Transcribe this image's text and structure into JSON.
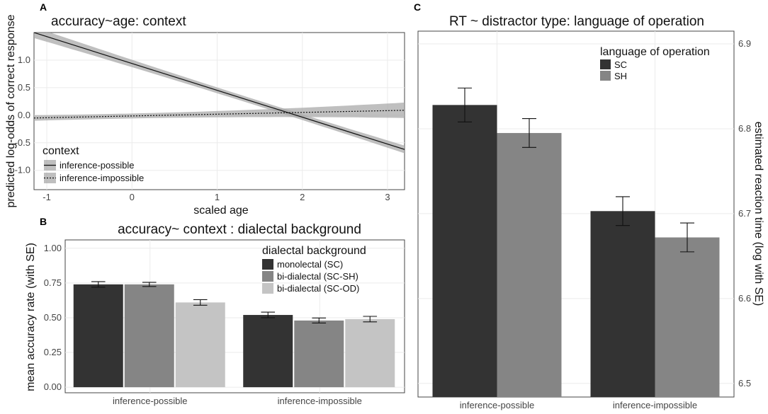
{
  "chart_data": [
    {
      "panel": "A",
      "type": "line",
      "title": "accuracy~age: context",
      "xlabel": "scaled age",
      "ylabel": "predicted log-odds of correct response",
      "xlim": [
        -1.15,
        3.2
      ],
      "ylim": [
        -1.35,
        1.5
      ],
      "xticks": [
        -1,
        0,
        1,
        2,
        3
      ],
      "yticks": [
        -1.0,
        -0.5,
        0.0,
        0.5,
        1.0
      ],
      "grid": true,
      "legend": {
        "title": "context",
        "position": "bottom-left"
      },
      "series": [
        {
          "name": "inference-possible",
          "line": "solid",
          "x": [
            -1.15,
            3.2
          ],
          "y": [
            1.5,
            -0.62
          ],
          "ci_halfwidth_ends": [
            0.1,
            0.07
          ],
          "ci_halfwidth_mid": 0.02
        },
        {
          "name": "inference-impossible",
          "line": "dotted",
          "x": [
            -1.15,
            3.2
          ],
          "y": [
            -0.05,
            0.09
          ],
          "ci_halfwidth_ends": [
            0.05,
            0.14
          ],
          "ci_halfwidth_mid": 0.02
        }
      ]
    },
    {
      "panel": "B",
      "type": "bar",
      "title": "accuracy~ context : dialectal background",
      "xlabel": "",
      "ylabel": "mean accuracy rate (with SE)",
      "ylim": [
        -0.04,
        1.06
      ],
      "yticks": [
        0.0,
        0.25,
        0.5,
        0.75,
        1.0
      ],
      "ytick_labels": [
        "0.00",
        "0.25",
        "0.50",
        "0.75",
        "1.00"
      ],
      "categories": [
        "inference-possible",
        "inference-impossible"
      ],
      "grid": true,
      "legend": {
        "title": "dialectal background",
        "position": "top-right"
      },
      "series": [
        {
          "name": "monolectal (SC)",
          "color": "#333333",
          "values": [
            0.74,
            0.52
          ],
          "se": [
            0.02,
            0.02
          ]
        },
        {
          "name": "bi-dialectal (SC-SH)",
          "color": "#858585",
          "values": [
            0.74,
            0.48
          ],
          "se": [
            0.015,
            0.018
          ]
        },
        {
          "name": "bi-dialectal (SC-OD)",
          "color": "#c4c4c4",
          "values": [
            0.61,
            0.49
          ],
          "se": [
            0.02,
            0.02
          ]
        }
      ]
    },
    {
      "panel": "C",
      "type": "bar",
      "title": "RT ~ distractor type: language of operation",
      "xlabel": "",
      "ylabel": "estimated reaction time (log with SE)",
      "y_axis_position": "right",
      "ylim": [
        6.484,
        6.915
      ],
      "yticks": [
        6.5,
        6.6,
        6.7,
        6.8,
        6.9
      ],
      "ytick_labels": [
        "6.5",
        "6.6",
        "6.7",
        "6.8",
        "6.9"
      ],
      "categories": [
        "inference-possible",
        "inference-impossible"
      ],
      "grid": true,
      "legend": {
        "title": "language of operation",
        "position": "top-right"
      },
      "series": [
        {
          "name": "SC",
          "color": "#333333",
          "values": [
            6.828,
            6.703
          ],
          "se": [
            0.02,
            0.017
          ]
        },
        {
          "name": "SH",
          "color": "#858585",
          "values": [
            6.795,
            6.672
          ],
          "se": [
            0.017,
            0.017
          ]
        }
      ]
    }
  ]
}
